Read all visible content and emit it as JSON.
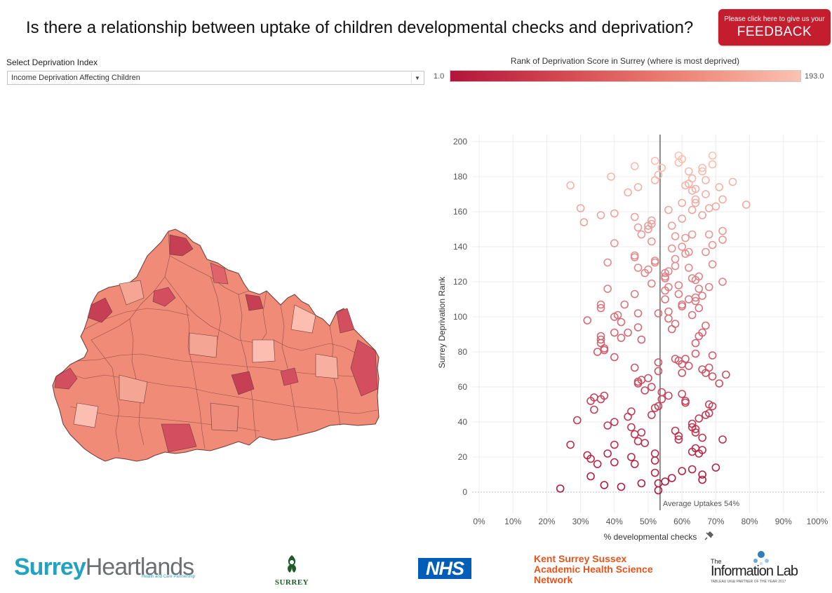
{
  "header": {
    "title": "Is there a relationship between uptake of children developmental checks and deprivation?",
    "feedback": {
      "line1": "Please click here to give us your",
      "line2": "FEEDBACK",
      "color": "#c41e2e"
    }
  },
  "filter": {
    "label": "Select Deprivation Index",
    "selected": "Income Deprivation Affecting Children"
  },
  "legend": {
    "title": "Rank of Deprivation Score in Surrey (where  is most deprived)",
    "min": "1.0",
    "max": "193.0",
    "color_low": "#b1153b",
    "color_high": "#fbc2b2"
  },
  "map": {
    "icon": "surrey-choropleth-map"
  },
  "chart_data": {
    "type": "scatter",
    "xlabel": "% developmental checks",
    "ylabel": "Surrey Deprivation Rank",
    "xlim": [
      0,
      100
    ],
    "ylim": [
      0,
      200
    ],
    "x_ticks": [
      "0%",
      "10%",
      "20%",
      "30%",
      "40%",
      "50%",
      "60%",
      "70%",
      "80%",
      "90%",
      "100%"
    ],
    "y_ticks": [
      "0",
      "20",
      "40",
      "60",
      "80",
      "100",
      "120",
      "140",
      "160",
      "180",
      "200"
    ],
    "reference_line": {
      "x": 53.5,
      "label": "Average Uptakes 54%"
    },
    "grid": true,
    "points": [
      [
        27,
        175
      ],
      [
        30,
        162
      ],
      [
        31,
        154
      ],
      [
        39,
        180
      ],
      [
        44,
        171
      ],
      [
        46,
        186
      ],
      [
        47,
        174
      ],
      [
        52,
        189
      ],
      [
        53,
        181
      ],
      [
        52,
        178
      ],
      [
        54,
        185
      ],
      [
        59,
        188
      ],
      [
        59,
        192
      ],
      [
        60,
        190
      ],
      [
        62,
        183
      ],
      [
        62,
        176
      ],
      [
        63,
        179
      ],
      [
        63,
        172
      ],
      [
        61,
        175
      ],
      [
        64,
        173
      ],
      [
        64,
        167
      ],
      [
        64,
        165
      ],
      [
        66,
        183
      ],
      [
        66,
        185
      ],
      [
        67,
        178
      ],
      [
        67,
        170
      ],
      [
        69,
        187
      ],
      [
        69,
        192
      ],
      [
        70,
        163
      ],
      [
        71,
        174
      ],
      [
        72,
        167
      ],
      [
        75,
        177
      ],
      [
        79,
        164
      ],
      [
        36,
        158
      ],
      [
        40,
        159
      ],
      [
        46,
        157
      ],
      [
        47,
        151
      ],
      [
        48,
        147
      ],
      [
        50,
        150
      ],
      [
        50,
        152
      ],
      [
        51,
        153
      ],
      [
        51,
        155
      ],
      [
        51,
        143
      ],
      [
        56,
        161
      ],
      [
        57,
        152
      ],
      [
        58,
        146
      ],
      [
        60,
        165
      ],
      [
        60,
        156
      ],
      [
        61,
        145
      ],
      [
        63,
        161
      ],
      [
        63,
        147
      ],
      [
        66,
        158
      ],
      [
        68,
        162
      ],
      [
        68,
        147
      ],
      [
        72,
        149
      ],
      [
        72,
        144
      ],
      [
        69,
        141
      ],
      [
        38,
        131
      ],
      [
        40,
        142
      ],
      [
        46,
        135
      ],
      [
        46,
        134
      ],
      [
        47,
        128
      ],
      [
        49,
        125
      ],
      [
        50,
        127
      ],
      [
        51,
        119
      ],
      [
        52,
        131
      ],
      [
        52,
        132
      ],
      [
        55,
        125
      ],
      [
        55,
        123
      ],
      [
        56,
        126
      ],
      [
        56,
        117
      ],
      [
        57,
        139
      ],
      [
        58,
        129
      ],
      [
        58,
        133
      ],
      [
        60,
        140
      ],
      [
        61,
        136
      ],
      [
        62,
        128
      ],
      [
        62,
        137
      ],
      [
        64,
        121
      ],
      [
        64,
        111
      ],
      [
        65,
        123
      ],
      [
        66,
        112
      ],
      [
        67,
        137
      ],
      [
        68,
        117
      ],
      [
        69,
        130
      ],
      [
        72,
        120
      ],
      [
        36,
        107
      ],
      [
        36,
        105
      ],
      [
        38,
        116
      ],
      [
        40,
        100
      ],
      [
        41,
        101
      ],
      [
        42,
        97
      ],
      [
        43,
        107
      ],
      [
        44,
        91
      ],
      [
        46,
        113
      ],
      [
        47,
        102
      ],
      [
        47,
        94
      ],
      [
        48,
        87
      ],
      [
        53,
        102
      ],
      [
        55,
        110
      ],
      [
        55,
        115
      ],
      [
        55,
        122
      ],
      [
        56,
        103
      ],
      [
        56,
        99
      ],
      [
        57,
        93
      ],
      [
        58,
        96
      ],
      [
        59,
        118
      ],
      [
        59,
        113
      ],
      [
        60,
        107
      ],
      [
        60,
        106
      ],
      [
        62,
        110
      ],
      [
        64,
        109
      ],
      [
        65,
        116
      ],
      [
        65,
        105
      ],
      [
        63,
        122
      ],
      [
        63,
        101
      ],
      [
        66,
        91
      ],
      [
        67,
        95
      ],
      [
        32,
        98
      ],
      [
        35,
        80
      ],
      [
        36,
        89
      ],
      [
        36,
        87
      ],
      [
        36,
        85
      ],
      [
        37,
        82
      ],
      [
        37,
        81
      ],
      [
        40,
        91
      ],
      [
        40,
        77
      ],
      [
        42,
        88
      ],
      [
        46,
        71
      ],
      [
        47,
        63
      ],
      [
        47,
        62
      ],
      [
        48,
        64
      ],
      [
        49,
        58
      ],
      [
        50,
        65
      ],
      [
        51,
        60
      ],
      [
        53,
        74
      ],
      [
        53,
        69
      ],
      [
        58,
        76
      ],
      [
        59,
        75
      ],
      [
        60,
        73
      ],
      [
        60,
        68
      ],
      [
        61,
        76
      ],
      [
        62,
        72
      ],
      [
        64,
        85
      ],
      [
        64,
        79
      ],
      [
        65,
        89
      ],
      [
        66,
        70
      ],
      [
        67,
        68
      ],
      [
        68,
        71
      ],
      [
        69,
        78
      ],
      [
        69,
        66
      ],
      [
        71,
        62
      ],
      [
        73,
        67
      ],
      [
        29,
        41
      ],
      [
        33,
        52
      ],
      [
        34,
        54
      ],
      [
        34,
        47
      ],
      [
        36,
        53
      ],
      [
        37,
        55
      ],
      [
        38,
        38
      ],
      [
        40,
        40
      ],
      [
        44,
        43
      ],
      [
        45,
        37
      ],
      [
        45,
        46
      ],
      [
        46,
        33
      ],
      [
        47,
        29
      ],
      [
        48,
        34
      ],
      [
        49,
        28
      ],
      [
        51,
        44
      ],
      [
        52,
        48
      ],
      [
        53,
        49
      ],
      [
        54,
        57
      ],
      [
        54,
        53
      ],
      [
        56,
        55
      ],
      [
        58,
        35
      ],
      [
        59,
        32
      ],
      [
        59,
        30
      ],
      [
        60,
        56
      ],
      [
        61,
        51
      ],
      [
        61,
        52
      ],
      [
        63,
        39
      ],
      [
        63,
        37
      ],
      [
        64,
        36
      ],
      [
        64,
        34
      ],
      [
        65,
        42
      ],
      [
        66,
        31
      ],
      [
        67,
        44
      ],
      [
        68,
        45
      ],
      [
        68,
        50
      ],
      [
        69,
        49
      ],
      [
        27,
        27
      ],
      [
        32,
        21
      ],
      [
        33,
        19
      ],
      [
        33,
        9
      ],
      [
        35,
        16
      ],
      [
        37,
        4
      ],
      [
        38,
        22
      ],
      [
        40,
        27
      ],
      [
        40,
        17
      ],
      [
        42,
        3
      ],
      [
        45,
        20
      ],
      [
        46,
        16
      ],
      [
        48,
        5
      ],
      [
        52,
        18
      ],
      [
        52,
        22
      ],
      [
        52,
        11
      ],
      [
        53,
        1
      ],
      [
        53,
        5
      ],
      [
        55,
        6
      ],
      [
        57,
        8
      ],
      [
        60,
        12
      ],
      [
        63,
        13
      ],
      [
        63,
        23
      ],
      [
        64,
        25
      ],
      [
        65,
        22
      ],
      [
        66,
        24
      ],
      [
        66,
        10
      ],
      [
        66,
        7
      ],
      [
        70,
        14
      ],
      [
        72,
        30
      ],
      [
        24,
        2
      ]
    ]
  },
  "footer": {
    "surrey_heartlands": {
      "word1": "Surrey",
      "word2": "Heartlands",
      "sub": "Health and Care Partnership"
    },
    "surrey": {
      "word": "SURREY",
      "icon": "surrey-county-crest-icon"
    },
    "nhs": {
      "word": "NHS"
    },
    "ksahsn": {
      "line1": "Kent Surrey Sussex",
      "line2": "Academic Health Science",
      "line3": "Network"
    },
    "infolab": {
      "the": "The",
      "name": "Information Lab",
      "tag": "TABLEAU UK&I PARTNER OF THE YEAR 2017"
    }
  }
}
